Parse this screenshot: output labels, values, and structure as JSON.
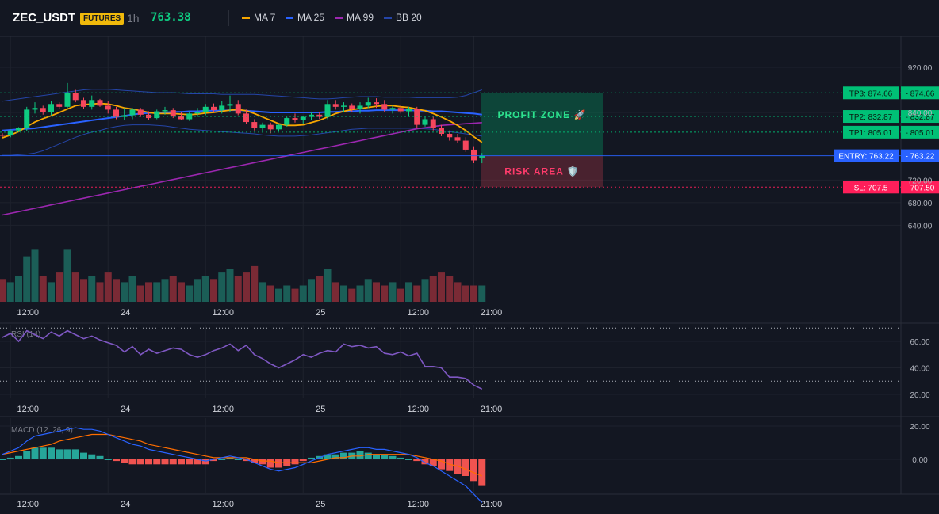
{
  "header": {
    "symbol": "ZEC_USDT",
    "badge": "FUTURES",
    "timeframe": "1h",
    "price": "763.38",
    "legend": [
      {
        "label": "MA 7",
        "color": "#f7a600"
      },
      {
        "label": "MA 25",
        "color": "#2962ff"
      },
      {
        "label": "MA 99",
        "color": "#9c27b0"
      },
      {
        "label": "BB 20",
        "color": "#2545a8"
      }
    ]
  },
  "zones": {
    "profit_label": "PROFIT ZONE 🚀",
    "risk_label": "RISK AREA 🛡️"
  },
  "levels": [
    {
      "name": "tp3",
      "label": "TP3: 874.66",
      "axis_label": "874.66",
      "value": 874.66,
      "color": "#00c076"
    },
    {
      "name": "tp2",
      "label": "TP2: 832.87",
      "axis_label": "832.87",
      "value": 832.87,
      "color": "#00c076"
    },
    {
      "name": "tp1",
      "label": "TP1: 805.01",
      "axis_label": "805.01",
      "value": 805.01,
      "color": "#00c076"
    },
    {
      "name": "entry",
      "label": "ENTRY: 763.22",
      "axis_label": "763.22",
      "value": 763.22,
      "color": "#2962ff"
    },
    {
      "name": "sl",
      "label": "SL: 707.5",
      "axis_label": "707.50",
      "value": 707.5,
      "color": "#ff1f5a"
    }
  ],
  "colors": {
    "up": "#0ecb81",
    "down": "#f6465d",
    "volume_up": "#1b5e57",
    "volume_down": "#7a2a35",
    "rsi": "#7e57c2",
    "macd": "#2962ff",
    "signal": "#ff6d00",
    "hist_up": "#26a69a",
    "hist_down": "#ef5350"
  },
  "chart_data": [
    {
      "type": "candlestick",
      "panel": "price",
      "x_ticks": [
        "12:00",
        "24",
        "12:00",
        "25",
        "12:00",
        "21:00"
      ],
      "x_tick_index": [
        1,
        13,
        25,
        37,
        49,
        58
      ],
      "y_ticks": [
        "920.00",
        "840.00",
        "720.00",
        "680.00",
        "640.00"
      ],
      "y_tick_values": [
        920,
        840,
        720,
        680,
        640
      ],
      "ylim": [
        628,
        942
      ],
      "candles": [
        [
          800,
          803,
          796,
          799
        ],
        [
          799,
          810,
          796,
          808
        ],
        [
          808,
          814,
          805,
          812
        ],
        [
          812,
          850,
          807,
          845
        ],
        [
          845,
          858,
          838,
          848
        ],
        [
          848,
          852,
          836,
          840
        ],
        [
          840,
          860,
          835,
          855
        ],
        [
          855,
          858,
          846,
          850
        ],
        [
          850,
          892,
          848,
          875
        ],
        [
          875,
          880,
          858,
          862
        ],
        [
          862,
          866,
          846,
          850
        ],
        [
          850,
          870,
          845,
          862
        ],
        [
          862,
          864,
          850,
          852
        ],
        [
          852,
          860,
          838,
          845
        ],
        [
          845,
          850,
          828,
          832
        ],
        [
          832,
          848,
          826,
          835
        ],
        [
          835,
          848,
          828,
          845
        ],
        [
          845,
          848,
          832,
          836
        ],
        [
          836,
          842,
          826,
          830
        ],
        [
          830,
          845,
          828,
          842
        ],
        [
          842,
          850,
          836,
          844
        ],
        [
          844,
          848,
          830,
          834
        ],
        [
          834,
          840,
          826,
          828
        ],
        [
          828,
          842,
          825,
          838
        ],
        [
          838,
          848,
          832,
          840
        ],
        [
          840,
          855,
          835,
          850
        ],
        [
          850,
          856,
          840,
          844
        ],
        [
          844,
          860,
          838,
          852
        ],
        [
          852,
          870,
          840,
          855
        ],
        [
          855,
          862,
          835,
          838
        ],
        [
          838,
          845,
          820,
          823
        ],
        [
          823,
          828,
          808,
          812
        ],
        [
          812,
          822,
          806,
          818
        ],
        [
          818,
          822,
          803,
          810
        ],
        [
          810,
          820,
          806,
          818
        ],
        [
          818,
          832,
          815,
          830
        ],
        [
          830,
          838,
          822,
          826
        ],
        [
          826,
          834,
          820,
          832
        ],
        [
          832,
          840,
          826,
          836
        ],
        [
          836,
          840,
          828,
          832
        ],
        [
          832,
          862,
          828,
          855
        ],
        [
          855,
          862,
          845,
          850
        ],
        [
          850,
          858,
          840,
          852
        ],
        [
          852,
          856,
          840,
          846
        ],
        [
          846,
          858,
          838,
          852
        ],
        [
          852,
          866,
          848,
          858
        ],
        [
          858,
          865,
          848,
          855
        ],
        [
          855,
          862,
          840,
          845
        ],
        [
          845,
          852,
          838,
          848
        ],
        [
          848,
          852,
          838,
          842
        ],
        [
          842,
          850,
          832,
          846
        ],
        [
          846,
          850,
          812,
          818
        ],
        [
          818,
          832,
          815,
          828
        ],
        [
          828,
          832,
          808,
          812
        ],
        [
          812,
          818,
          798,
          802
        ],
        [
          802,
          808,
          790,
          796
        ],
        [
          796,
          802,
          786,
          790
        ],
        [
          790,
          796,
          770,
          774
        ],
        [
          774,
          780,
          750,
          755
        ],
        [
          760,
          768,
          750,
          763
        ]
      ],
      "volume": [
        7,
        6,
        8,
        14,
        16,
        8,
        6,
        9,
        16,
        9,
        7,
        8,
        6,
        9,
        7,
        6,
        8,
        5,
        6,
        6,
        7,
        8,
        6,
        5,
        7,
        8,
        7,
        9,
        10,
        8,
        9,
        11,
        6,
        5,
        4,
        5,
        4,
        5,
        7,
        8,
        10,
        6,
        5,
        4,
        5,
        7,
        6,
        5,
        6,
        4,
        6,
        5,
        7,
        8,
        9,
        8,
        6,
        5,
        5,
        5
      ],
      "series": [
        {
          "name": "MA 7",
          "values": [
            795,
            800,
            806,
            815,
            823,
            829,
            834,
            840,
            846,
            852,
            854,
            855,
            856,
            855,
            852,
            848,
            846,
            843,
            840,
            838,
            838,
            838,
            837,
            836,
            837,
            839,
            840,
            842,
            844,
            845,
            843,
            838,
            832,
            826,
            820,
            817,
            817,
            818,
            822,
            826,
            832,
            838,
            842,
            845,
            847,
            849,
            851,
            852,
            852,
            850,
            849,
            846,
            843,
            838,
            832,
            825,
            817,
            808,
            797,
            787
          ]
        },
        {
          "name": "MA 25",
          "values": [
            808,
            809,
            810,
            811,
            812,
            814,
            816,
            818,
            820,
            822,
            824,
            826,
            828,
            830,
            832,
            834,
            836,
            838,
            839,
            840,
            840,
            841,
            841,
            842,
            842,
            843,
            843,
            843,
            844,
            844,
            843,
            842,
            841,
            840,
            840,
            840,
            840,
            840,
            840,
            840,
            841,
            841,
            842,
            842,
            843,
            843,
            844,
            844,
            844,
            844,
            844,
            843,
            843,
            842,
            842,
            841,
            840,
            839,
            838,
            836
          ]
        },
        {
          "name": "MA 99",
          "values": [
            658,
            661,
            664,
            667,
            670,
            673,
            676,
            679,
            682,
            685,
            688,
            691,
            694,
            697,
            700,
            703,
            706,
            709,
            712,
            715,
            718,
            721,
            724,
            727,
            730,
            733,
            736,
            739,
            742,
            745,
            748,
            751,
            754,
            757,
            760,
            763,
            766,
            769,
            772,
            775,
            778,
            781,
            784,
            787,
            790,
            793,
            796,
            799,
            802,
            805,
            808,
            811,
            813,
            815,
            817,
            818,
            819,
            820,
            821,
            822
          ]
        },
        {
          "name": "BB upper",
          "values": [
            860,
            862,
            864,
            866,
            868,
            870,
            872,
            874,
            876,
            878,
            880,
            881,
            881,
            881,
            880,
            879,
            878,
            877,
            876,
            875,
            875,
            875,
            874,
            873,
            873,
            873,
            873,
            872,
            872,
            872,
            872,
            872,
            871,
            870,
            869,
            868,
            867,
            866,
            865,
            864,
            864,
            865,
            866,
            867,
            868,
            868,
            868,
            867,
            867,
            867,
            867,
            866,
            866,
            866,
            866,
            866,
            867,
            870,
            875,
            880
          ]
        },
        {
          "name": "BB lower",
          "values": [
            764,
            764,
            765,
            766,
            768,
            772,
            778,
            784,
            790,
            796,
            801,
            805,
            808,
            812,
            815,
            817,
            818,
            818,
            818,
            817,
            816,
            814,
            812,
            810,
            809,
            808,
            807,
            806,
            805,
            804,
            803,
            802,
            800,
            799,
            798,
            798,
            798,
            799,
            800,
            802,
            804,
            806,
            808,
            810,
            811,
            812,
            812,
            812,
            812,
            812,
            812,
            812,
            811,
            810,
            808,
            806,
            804,
            802,
            800,
            798
          ]
        }
      ]
    },
    {
      "type": "line",
      "panel": "rsi",
      "title": "RSI (14)",
      "x_ticks": [
        "12:00",
        "24",
        "12:00",
        "25",
        "12:00",
        "21:00"
      ],
      "y_ticks": [
        "60.00",
        "40.00",
        "20.00"
      ],
      "y_tick_values": [
        60,
        40,
        20
      ],
      "ylim": [
        16,
        72
      ],
      "levels": [
        70,
        30
      ],
      "series": [
        {
          "name": "RSI (14)",
          "values": [
            63,
            66,
            60,
            68,
            65,
            62,
            67,
            64,
            68,
            65,
            62,
            64,
            61,
            59,
            57,
            52,
            56,
            50,
            54,
            51,
            53,
            55,
            54,
            50,
            48,
            50,
            53,
            55,
            58,
            53,
            57,
            50,
            47,
            43,
            40,
            43,
            46,
            50,
            48,
            51,
            53,
            52,
            58,
            56,
            57,
            55,
            56,
            51,
            50,
            52,
            49,
            51,
            41,
            41,
            40,
            33,
            33,
            32,
            27,
            24
          ]
        }
      ]
    },
    {
      "type": "line",
      "panel": "macd",
      "title": "MACD (12, 26, 9)",
      "x_ticks": [
        "12:00",
        "24",
        "12:00",
        "25",
        "12:00",
        "21:00"
      ],
      "y_ticks": [
        "20.00",
        "0.00"
      ],
      "y_tick_values": [
        20,
        0
      ],
      "ylim": [
        -30,
        27
      ],
      "series": [
        {
          "name": "MACD",
          "values": [
            3,
            5,
            7,
            11,
            14,
            15,
            16,
            17,
            18,
            19,
            18,
            18,
            17,
            15,
            13,
            11,
            9,
            8,
            6,
            5,
            4,
            3,
            2,
            1,
            0,
            -1,
            0,
            1,
            2,
            1,
            0,
            -2,
            -4,
            -6,
            -7,
            -6,
            -5,
            -3,
            -1,
            1,
            3,
            4,
            5,
            6,
            7,
            7,
            6,
            6,
            5,
            4,
            3,
            1,
            -2,
            -4,
            -7,
            -10,
            -13,
            -16,
            -21,
            -26
          ]
        },
        {
          "name": "Signal",
          "values": [
            3,
            4,
            5,
            6,
            7,
            8,
            9,
            11,
            12,
            13,
            14,
            15,
            15,
            15,
            14,
            13,
            12,
            11,
            9,
            8,
            7,
            6,
            5,
            4,
            3,
            2,
            1,
            1,
            1,
            1,
            1,
            0,
            -1,
            -1,
            -2,
            -2,
            -2,
            -2,
            -2,
            -1,
            0,
            1,
            1,
            2,
            2,
            3,
            3,
            3,
            3,
            3,
            3,
            2,
            1,
            0,
            -1,
            -3,
            -4,
            -6,
            -8,
            -10
          ]
        }
      ],
      "histogram": [
        0,
        1,
        2,
        5,
        7,
        7,
        7,
        6,
        6,
        6,
        4,
        3,
        2,
        0,
        -1,
        -2,
        -3,
        -3,
        -3,
        -3,
        -3,
        -3,
        -3,
        -3,
        -3,
        -3,
        -1,
        0,
        1,
        0,
        -1,
        -2,
        -3,
        -5,
        -5,
        -4,
        -3,
        -1,
        1,
        2,
        3,
        3,
        4,
        4,
        5,
        4,
        3,
        3,
        2,
        1,
        0,
        -1,
        -3,
        -4,
        -6,
        -7,
        -9,
        -10,
        -13,
        -16
      ]
    }
  ]
}
